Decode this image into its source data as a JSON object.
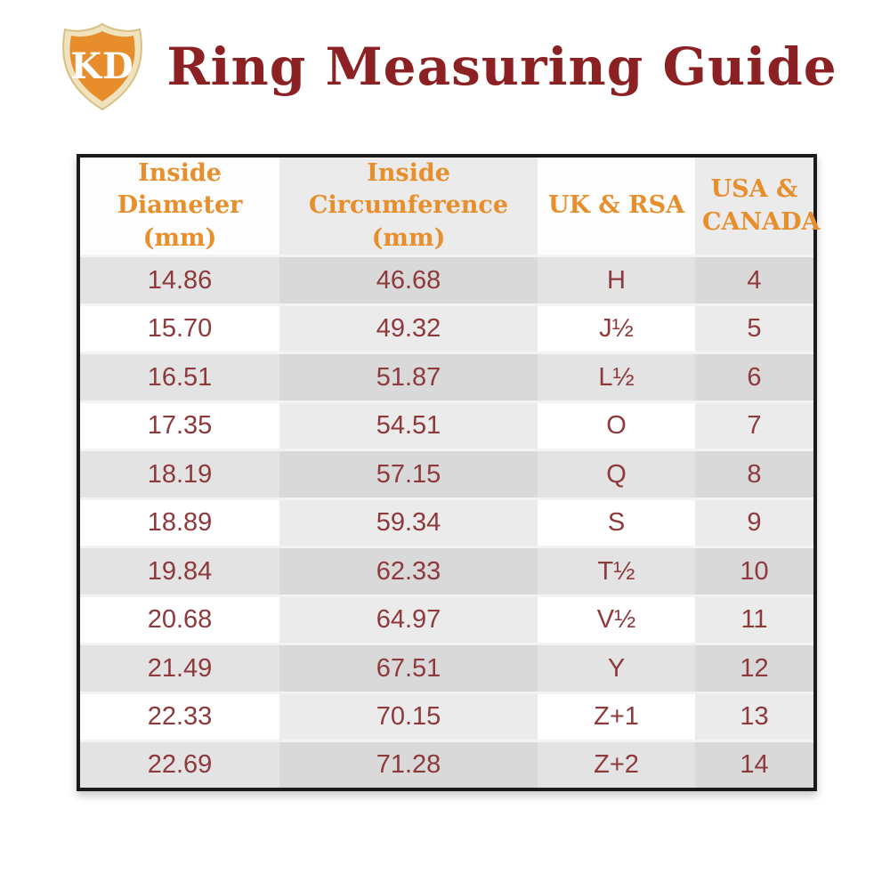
{
  "header": {
    "logo_text": "KD",
    "title": "Ring Measuring Guide"
  },
  "chart_data": {
    "type": "table",
    "title": "Ring Measuring Guide",
    "columns": [
      "Inside Diameter (mm)",
      "Inside Circumference (mm)",
      "UK & RSA",
      "USA & CANADA"
    ],
    "rows": [
      [
        "14.86",
        "46.68",
        "H",
        "4"
      ],
      [
        "15.70",
        "49.32",
        "J½",
        "5"
      ],
      [
        "16.51",
        "51.87",
        "L½",
        "6"
      ],
      [
        "17.35",
        "54.51",
        "O",
        "7"
      ],
      [
        "18.19",
        "57.15",
        "Q",
        "8"
      ],
      [
        "18.89",
        "59.34",
        "S",
        "9"
      ],
      [
        "19.84",
        "62.33",
        "T½",
        "10"
      ],
      [
        "20.68",
        "64.97",
        "V½",
        "11"
      ],
      [
        "21.49",
        "67.51",
        "Y",
        "12"
      ],
      [
        "22.33",
        "70.15",
        "Z+1",
        "13"
      ],
      [
        "22.69",
        "71.28",
        "Z+2",
        "14"
      ]
    ]
  },
  "colors": {
    "title_maroon": "#8c2123",
    "data_maroon": "#8e3a3c",
    "header_orange": "#e78e2d",
    "table_border": "#1b1b1b",
    "row_gray": "#e3e3e3",
    "row_gray_shaded": "#d9d9d9",
    "row_white": "#ffffff",
    "row_white_shaded": "#ebebeb",
    "header_bg": "#fdfdfd",
    "header_bg_shaded": "#ebebeb",
    "separator": "#f3f3f3",
    "logo_orange": "#e88d2b",
    "logo_rim": "#f0e2bd",
    "logo_rim_edge": "#d8bf86",
    "logo_letter": "#ffffff"
  }
}
